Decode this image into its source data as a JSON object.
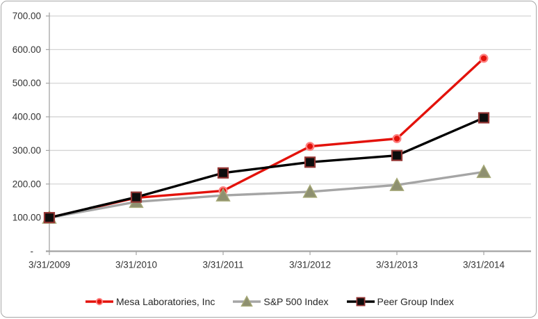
{
  "chart_data": {
    "type": "line",
    "title": "",
    "categories": [
      "3/31/2009",
      "3/31/2010",
      "3/31/2011",
      "3/31/2012",
      "3/31/2013",
      "3/31/2014"
    ],
    "series": [
      {
        "name": "Mesa Laboratories, Inc",
        "marker": "circle",
        "color": "#e3120b",
        "marker_fill": "#e3120b",
        "marker_stroke": "#ff8080",
        "values": [
          100,
          159,
          180,
          312,
          335,
          574
        ]
      },
      {
        "name": "S&P 500 Index",
        "marker": "triangle",
        "color": "#a5a5a5",
        "marker_fill": "#8e9070",
        "marker_stroke": "#a6a977",
        "values": [
          100,
          147,
          166,
          177,
          197,
          236
        ]
      },
      {
        "name": "Peer Group Index",
        "marker": "square",
        "color": "#000000",
        "marker_fill": "#0d0d0d",
        "marker_stroke": "#953735",
        "values": [
          100,
          161,
          233,
          265,
          285,
          397
        ]
      }
    ],
    "y_ticks": [
      {
        "value": 700,
        "label": "700.00"
      },
      {
        "value": 600,
        "label": "600.00"
      },
      {
        "value": 500,
        "label": "500.00"
      },
      {
        "value": 400,
        "label": "400.00"
      },
      {
        "value": 300,
        "label": "300.00"
      },
      {
        "value": 200,
        "label": "200.00"
      },
      {
        "value": 100,
        "label": "100.00"
      },
      {
        "value": 0,
        "label": "-"
      }
    ],
    "ylim": [
      0,
      700
    ],
    "xlabel": "",
    "ylabel": "",
    "grid": true,
    "legend_position": "bottom",
    "gridline_color": "#d4d4d4",
    "axis_color": "#a3a3a3",
    "text_color": "#333333"
  }
}
